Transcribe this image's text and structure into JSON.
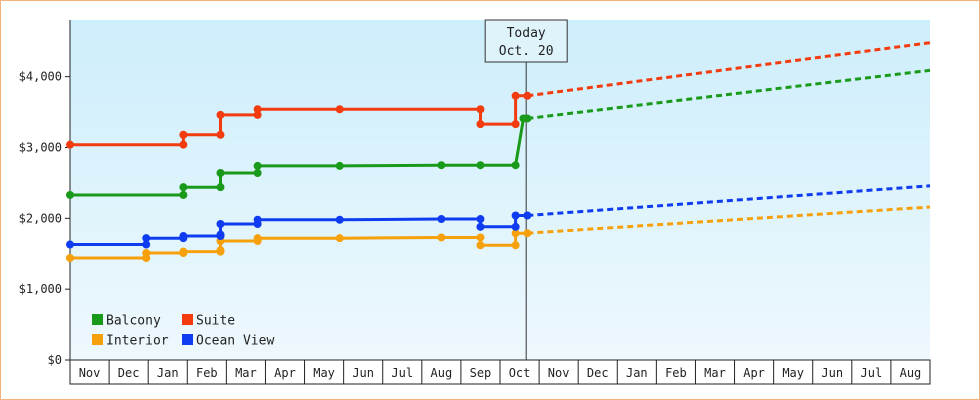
{
  "chart_data": {
    "type": "line",
    "title": "",
    "xlabel": "",
    "ylabel": "",
    "ylim": [
      0,
      4800
    ],
    "yticks": [
      0,
      1000,
      2000,
      3000,
      4000
    ],
    "ytick_labels": [
      "$0",
      "$1,000",
      "$2,000",
      "$3,000",
      "$4,000"
    ],
    "xrange": [
      0,
      22
    ],
    "month_labels": [
      "Nov",
      "Dec",
      "Jan",
      "Feb",
      "Mar",
      "Apr",
      "May",
      "Jun",
      "Jul",
      "Aug",
      "Sep",
      "Oct",
      "Nov",
      "Dec",
      "Jan",
      "Feb",
      "Mar",
      "Apr",
      "May",
      "Jun",
      "Jul",
      "Aug"
    ],
    "today": {
      "line1": "Today",
      "line2": "Oct. 20",
      "x": 11.67
    },
    "background": {
      "top": "#cdeefb",
      "bottom": "#eef8fd"
    },
    "legend_position": "bottom-left",
    "grid": false,
    "series": [
      {
        "name": "Balcony",
        "color": "#1a9a1a",
        "points": [
          [
            0,
            2330
          ],
          [
            2.9,
            2330
          ],
          [
            2.9,
            2440
          ],
          [
            3.85,
            2440
          ],
          [
            3.85,
            2640
          ],
          [
            4.8,
            2640
          ],
          [
            4.8,
            2740
          ],
          [
            6.9,
            2740
          ],
          [
            9.5,
            2750
          ],
          [
            10.5,
            2750
          ],
          [
            11.4,
            2750
          ],
          [
            11.6,
            3410
          ],
          [
            11.7,
            3410
          ]
        ],
        "markers": [
          [
            0,
            2330
          ],
          [
            2.9,
            2330
          ],
          [
            2.9,
            2440
          ],
          [
            3.85,
            2440
          ],
          [
            3.85,
            2640
          ],
          [
            4.8,
            2640
          ],
          [
            4.8,
            2740
          ],
          [
            6.9,
            2740
          ],
          [
            9.5,
            2750
          ],
          [
            10.5,
            2750
          ],
          [
            11.4,
            2750
          ],
          [
            11.6,
            3410
          ],
          [
            11.7,
            3410
          ]
        ],
        "forecast": [
          [
            11.7,
            3410
          ],
          [
            22,
            4090
          ]
        ]
      },
      {
        "name": "Suite",
        "color": "#f23c0f",
        "points": [
          [
            0,
            3040
          ],
          [
            2.9,
            3040
          ],
          [
            2.9,
            3180
          ],
          [
            3.85,
            3180
          ],
          [
            3.85,
            3460
          ],
          [
            4.8,
            3460
          ],
          [
            4.8,
            3540
          ],
          [
            6.9,
            3540
          ],
          [
            10.5,
            3540
          ],
          [
            10.5,
            3330
          ],
          [
            11.4,
            3330
          ],
          [
            11.4,
            3730
          ],
          [
            11.7,
            3730
          ]
        ],
        "markers": [
          [
            0,
            3040
          ],
          [
            2.9,
            3040
          ],
          [
            2.9,
            3180
          ],
          [
            3.85,
            3180
          ],
          [
            3.85,
            3460
          ],
          [
            4.8,
            3460
          ],
          [
            4.8,
            3540
          ],
          [
            6.9,
            3540
          ],
          [
            10.5,
            3540
          ],
          [
            10.5,
            3330
          ],
          [
            11.4,
            3330
          ],
          [
            11.4,
            3730
          ],
          [
            11.7,
            3730
          ]
        ],
        "forecast": [
          [
            11.7,
            3730
          ],
          [
            22,
            4480
          ]
        ]
      },
      {
        "name": "Interior",
        "color": "#f6a10b",
        "points": [
          [
            0,
            1440
          ],
          [
            1.95,
            1440
          ],
          [
            1.95,
            1510
          ],
          [
            2.9,
            1510
          ],
          [
            2.9,
            1530
          ],
          [
            3.85,
            1530
          ],
          [
            3.85,
            1550
          ],
          [
            3.85,
            1680
          ],
          [
            4.8,
            1680
          ],
          [
            4.8,
            1720
          ],
          [
            6.9,
            1720
          ],
          [
            9.5,
            1730
          ],
          [
            10.5,
            1730
          ],
          [
            10.5,
            1620
          ],
          [
            11.4,
            1620
          ],
          [
            11.4,
            1790
          ],
          [
            11.7,
            1790
          ]
        ],
        "markers": [
          [
            0,
            1440
          ],
          [
            1.95,
            1440
          ],
          [
            1.95,
            1510
          ],
          [
            2.9,
            1510
          ],
          [
            2.9,
            1530
          ],
          [
            3.85,
            1530
          ],
          [
            3.85,
            1550
          ],
          [
            3.85,
            1680
          ],
          [
            4.8,
            1680
          ],
          [
            4.8,
            1720
          ],
          [
            6.9,
            1720
          ],
          [
            9.5,
            1730
          ],
          [
            10.5,
            1730
          ],
          [
            10.5,
            1620
          ],
          [
            11.4,
            1620
          ],
          [
            11.4,
            1790
          ],
          [
            11.7,
            1790
          ]
        ],
        "forecast": [
          [
            11.7,
            1790
          ],
          [
            22,
            2160
          ]
        ]
      },
      {
        "name": "Ocean View",
        "color": "#0f3cf0",
        "points": [
          [
            0,
            1630
          ],
          [
            1.95,
            1630
          ],
          [
            1.95,
            1720
          ],
          [
            2.9,
            1720
          ],
          [
            2.9,
            1750
          ],
          [
            3.85,
            1750
          ],
          [
            3.85,
            1770
          ],
          [
            3.85,
            1920
          ],
          [
            4.8,
            1920
          ],
          [
            4.8,
            1980
          ],
          [
            6.9,
            1980
          ],
          [
            9.5,
            1990
          ],
          [
            10.5,
            1990
          ],
          [
            10.5,
            1880
          ],
          [
            11.4,
            1880
          ],
          [
            11.4,
            2040
          ],
          [
            11.7,
            2040
          ]
        ],
        "markers": [
          [
            0,
            1630
          ],
          [
            1.95,
            1630
          ],
          [
            1.95,
            1720
          ],
          [
            2.9,
            1720
          ],
          [
            2.9,
            1750
          ],
          [
            3.85,
            1750
          ],
          [
            3.85,
            1770
          ],
          [
            3.85,
            1920
          ],
          [
            4.8,
            1920
          ],
          [
            4.8,
            1980
          ],
          [
            6.9,
            1980
          ],
          [
            9.5,
            1990
          ],
          [
            10.5,
            1990
          ],
          [
            10.5,
            1880
          ],
          [
            11.4,
            1880
          ],
          [
            11.4,
            2040
          ],
          [
            11.7,
            2040
          ]
        ],
        "forecast": [
          [
            11.7,
            2040
          ],
          [
            22,
            2460
          ]
        ]
      }
    ],
    "legend_rows": [
      [
        "Balcony",
        "Suite"
      ],
      [
        "Interior",
        "Ocean View"
      ]
    ]
  }
}
